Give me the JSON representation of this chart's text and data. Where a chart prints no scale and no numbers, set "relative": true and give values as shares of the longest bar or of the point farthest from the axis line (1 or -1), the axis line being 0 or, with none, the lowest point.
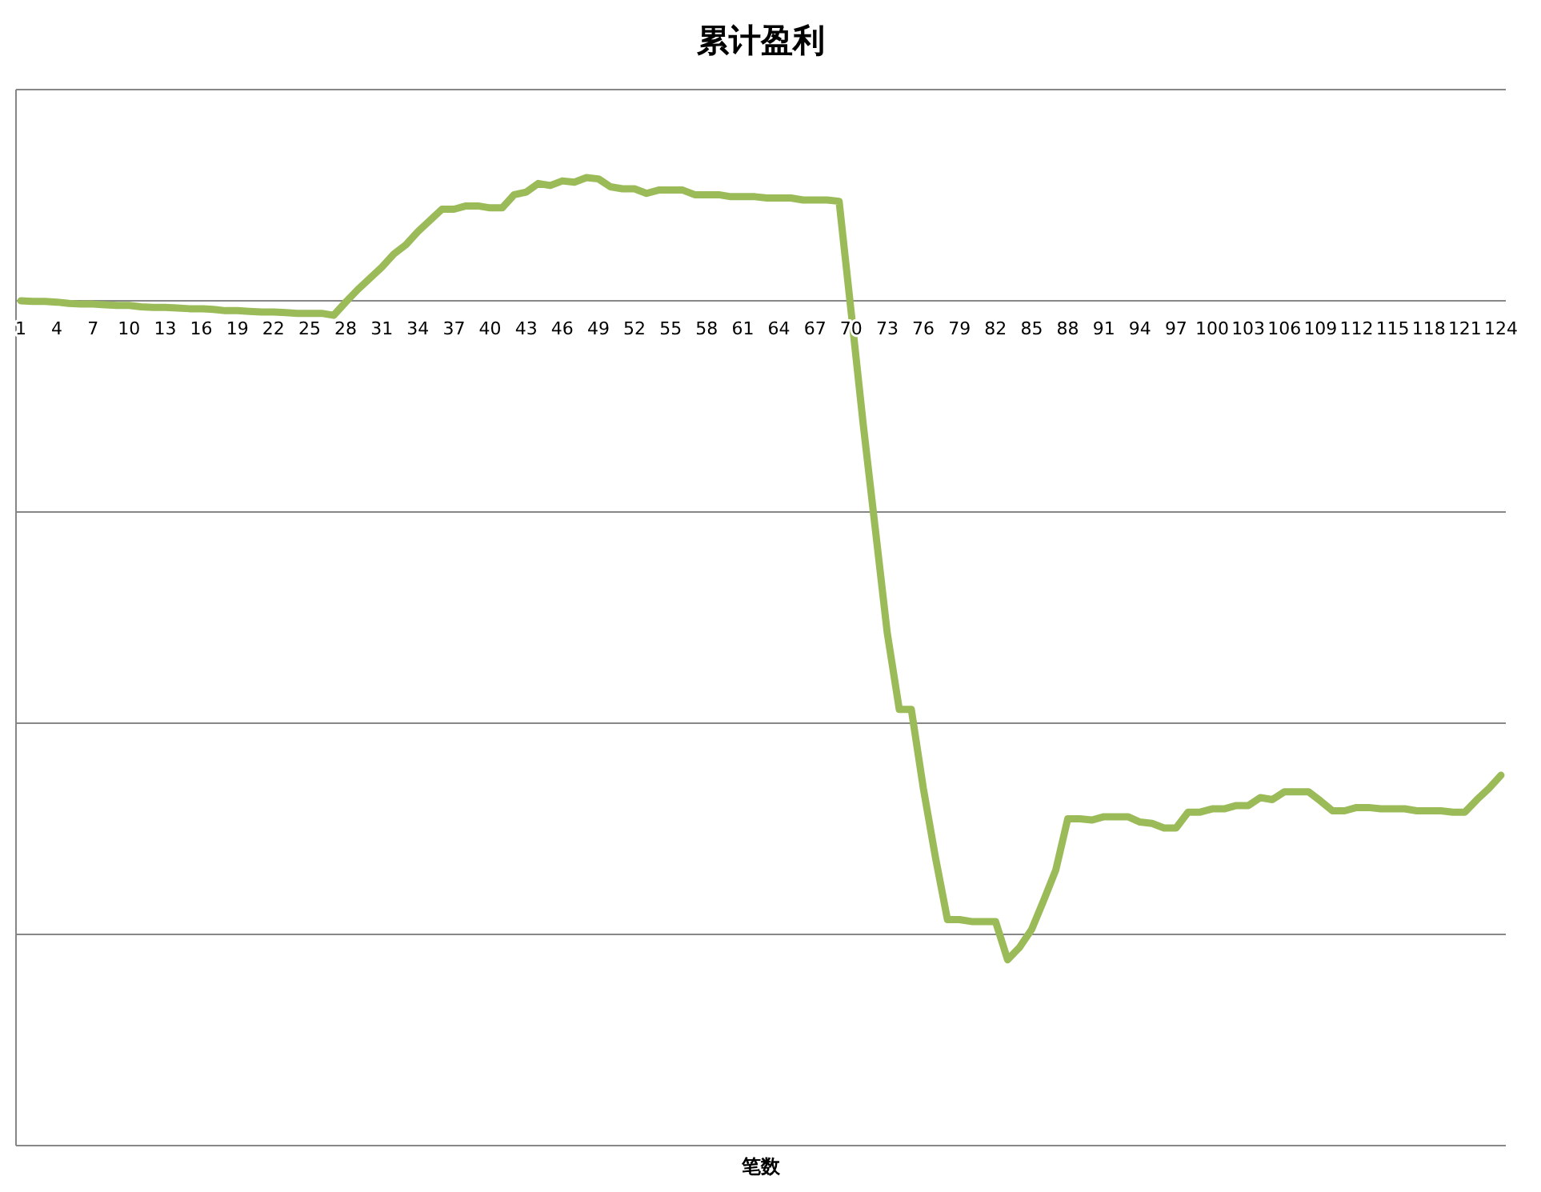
{
  "chart_data": {
    "type": "line",
    "title": "累计盈利",
    "annotations": [
      "笔数"
    ],
    "relative": true,
    "grid": "y",
    "categories": [
      "1",
      null,
      null,
      "4",
      null,
      null,
      "7",
      null,
      null,
      "10",
      null,
      null,
      "13",
      null,
      null,
      "16",
      null,
      null,
      "19",
      null,
      null,
      "22",
      null,
      null,
      "25",
      null,
      null,
      "28",
      null,
      null,
      "31",
      null,
      null,
      "34",
      null,
      null,
      "37",
      null,
      null,
      "40",
      null,
      null,
      "43",
      null,
      null,
      "46",
      null,
      null,
      "49",
      null,
      null,
      "52",
      null,
      null,
      "55",
      null,
      null,
      "58",
      null,
      null,
      "61",
      null,
      null,
      "64",
      null,
      null,
      "67",
      null,
      null,
      "70",
      null,
      null,
      "73",
      null,
      null,
      "76",
      null,
      null,
      "79",
      null,
      null,
      "82",
      null,
      null,
      "85",
      null,
      null,
      "88",
      null,
      null,
      "91",
      null,
      null,
      "94",
      null,
      null,
      "97",
      null,
      null,
      "100",
      null,
      null,
      "103",
      null,
      null,
      "106",
      null,
      null,
      "109",
      null,
      null,
      "112",
      null,
      null,
      "115",
      null,
      null,
      "118",
      null,
      null,
      "121",
      null,
      null,
      "124"
    ],
    "series": [
      {
        "color": "#9bbb59",
        "values": [
          0,
          -0.001,
          -0.001,
          -0.002,
          -0.004,
          -0.005,
          -0.005,
          -0.006,
          -0.007,
          -0.007,
          -0.009,
          -0.01,
          -0.01,
          -0.011,
          -0.012,
          -0.012,
          -0.013,
          -0.015,
          -0.015,
          -0.016,
          -0.017,
          -0.017,
          -0.018,
          -0.019,
          -0.019,
          -0.019,
          -0.022,
          -0.002,
          0.017,
          0.034,
          0.051,
          0.071,
          0.085,
          0.105,
          0.122,
          0.139,
          0.139,
          0.144,
          0.144,
          0.141,
          0.141,
          0.161,
          0.165,
          0.178,
          0.175,
          0.182,
          0.18,
          0.187,
          0.185,
          0.173,
          0.17,
          0.17,
          0.163,
          0.168,
          0.168,
          0.168,
          0.161,
          0.161,
          0.161,
          0.158,
          0.158,
          0.158,
          0.156,
          0.156,
          0.156,
          0.153,
          0.153,
          0.153,
          0.151,
          -0.017,
          -0.187,
          -0.345,
          -0.504,
          -0.62,
          -0.62,
          -0.74,
          -0.844,
          -0.939,
          -0.939,
          -0.942,
          -0.942,
          -0.942,
          -1,
          -0.981,
          -0.954,
          -0.91,
          -0.864,
          -0.786,
          -0.786,
          -0.788,
          -0.783,
          -0.783,
          -0.783,
          -0.791,
          -0.793,
          -0.8,
          -0.8,
          -0.776,
          -0.776,
          -0.771,
          -0.771,
          -0.766,
          -0.766,
          -0.754,
          -0.757,
          -0.745,
          -0.745,
          -0.745,
          -0.759,
          -0.774,
          -0.774,
          -0.769,
          -0.769,
          -0.771,
          -0.771,
          -0.771,
          -0.774,
          -0.774,
          -0.774,
          -0.776,
          -0.776,
          -0.757,
          -0.74,
          -0.72
        ]
      }
    ]
  }
}
